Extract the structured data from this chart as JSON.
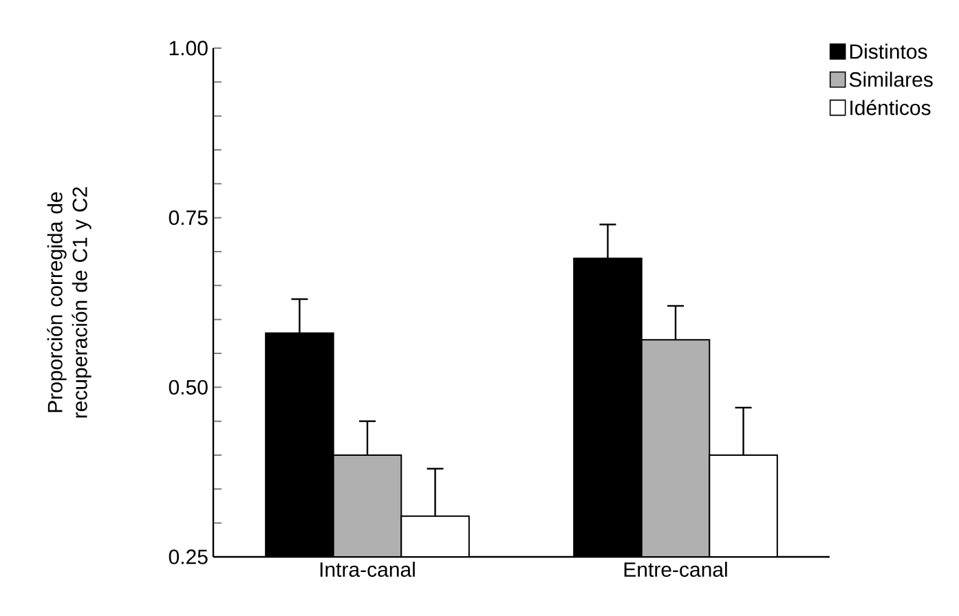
{
  "chart_data": {
    "type": "bar",
    "ylabel": "Proporción corregida de recuperación de C1 y C2",
    "categories": [
      "Intra-canal",
      "Entre-canal"
    ],
    "series": [
      {
        "name": "Distintos",
        "color": "#000000",
        "values": [
          0.58,
          0.69
        ],
        "errors": [
          [
            0.58,
            0.63
          ],
          [
            0.69,
            0.74
          ]
        ]
      },
      {
        "name": "Similares",
        "color": "#b0b0b0",
        "values": [
          0.4,
          0.57
        ],
        "errors": [
          [
            0.4,
            0.45
          ],
          [
            0.57,
            0.62
          ]
        ]
      },
      {
        "name": "Idénticos",
        "color": "#ffffff",
        "values": [
          0.31,
          0.4
        ],
        "errors": [
          [
            0.31,
            0.38
          ],
          [
            0.4,
            0.47
          ]
        ]
      }
    ],
    "ylim": [
      0.25,
      1.0
    ],
    "yticks": [
      {
        "value": 0.25,
        "label": "0.25"
      },
      {
        "value": 0.3,
        "label": null
      },
      {
        "value": 0.35,
        "label": null
      },
      {
        "value": 0.4,
        "label": null
      },
      {
        "value": 0.45,
        "label": null
      },
      {
        "value": 0.5,
        "label": "0.50"
      },
      {
        "value": 0.55,
        "label": null
      },
      {
        "value": 0.6,
        "label": null
      },
      {
        "value": 0.65,
        "label": null
      },
      {
        "value": 0.7,
        "label": null
      },
      {
        "value": 0.75,
        "label": "0.75"
      },
      {
        "value": 0.8,
        "label": null
      },
      {
        "value": 0.85,
        "label": null
      },
      {
        "value": 0.9,
        "label": null
      },
      {
        "value": 0.95,
        "label": null
      },
      {
        "value": 1.0,
        "label": "1.00"
      }
    ],
    "legend": "top right",
    "grid": false
  }
}
